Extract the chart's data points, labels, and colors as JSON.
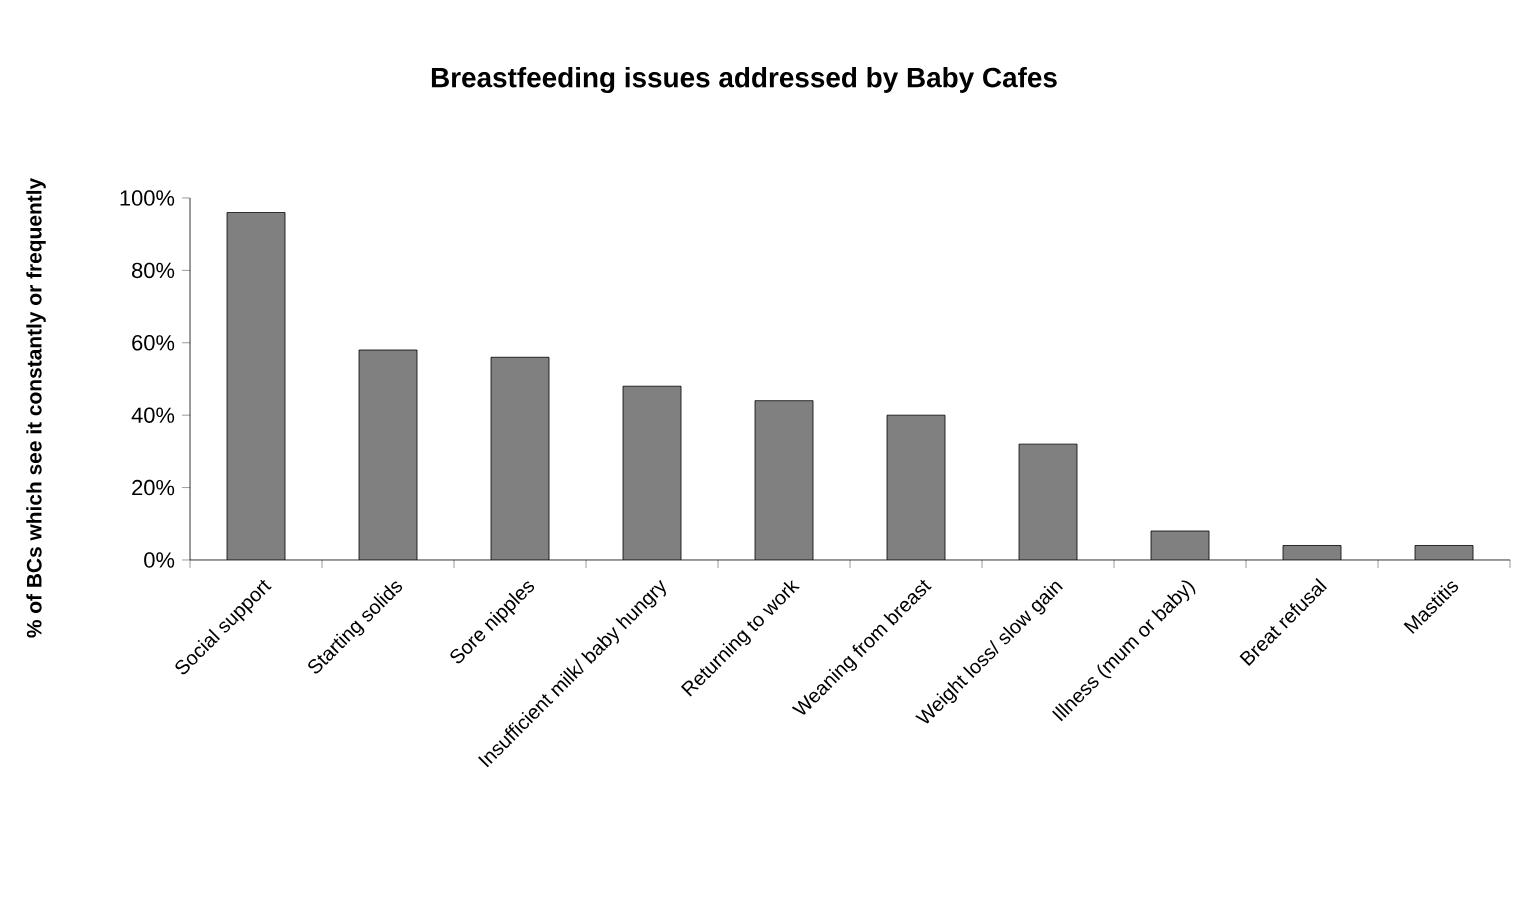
{
  "chart_data": {
    "type": "bar",
    "title": "Breastfeeding issues addressed by Baby Cafes",
    "ylabel": "% of BCs which see it constantly or frequently",
    "categories": [
      "Social support",
      "Starting solids",
      "Sore nipples",
      "Insufficient milk/ baby hungry",
      "Returning to work",
      "Weaning from breast",
      "Weight loss/ slow gain",
      "Illness (mum or baby)",
      "Breat refusal",
      "Mastitis"
    ],
    "values": [
      96,
      58,
      56,
      48,
      44,
      40,
      32,
      8,
      4,
      4
    ],
    "color": "#808080",
    "ylim": [
      0,
      100
    ],
    "yticks": [
      {
        "value": 0,
        "label": "0%"
      },
      {
        "value": 20,
        "label": "20%"
      },
      {
        "value": 40,
        "label": "40%"
      },
      {
        "value": 60,
        "label": "60%"
      },
      {
        "value": 80,
        "label": "80%"
      },
      {
        "value": 100,
        "label": "100%"
      }
    ],
    "grid": false
  }
}
